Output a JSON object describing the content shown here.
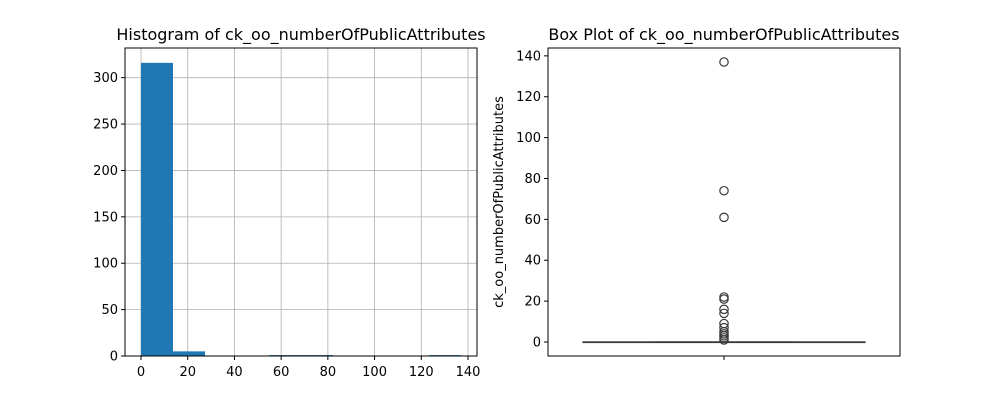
{
  "chart_data": [
    {
      "type": "bar",
      "subtype": "histogram",
      "title": "Histogram of ck_oo_numberOfPublicAttributes",
      "xlabel": "",
      "ylabel": "",
      "grid": true,
      "xlim": [
        -6.85,
        143.85
      ],
      "ylim": [
        0,
        332
      ],
      "xticks": [
        0,
        20,
        40,
        60,
        80,
        100,
        120,
        140
      ],
      "yticks": [
        0,
        50,
        100,
        150,
        200,
        250,
        300
      ],
      "bin_edges": [
        0,
        13.7,
        27.4,
        41.1,
        54.8,
        68.5,
        82.2,
        95.9,
        109.6,
        123.3,
        137
      ],
      "counts": [
        316,
        5,
        0,
        0,
        1,
        1,
        0,
        0,
        0,
        1
      ]
    },
    {
      "type": "box",
      "title": "Box Plot of ck_oo_numberOfPublicAttributes",
      "xlabel": "",
      "ylabel": "ck_oo_numberOfPublicAttributes",
      "ylim": [
        -6.85,
        143.85
      ],
      "yticks": [
        0,
        20,
        40,
        60,
        80,
        100,
        120,
        140
      ],
      "box": {
        "q1": 0,
        "median": 0,
        "q3": 0,
        "whisker_low": 0,
        "whisker_high": 0
      },
      "fliers": [
        137,
        74,
        61,
        22,
        21,
        16,
        14,
        9,
        7,
        5,
        4,
        3,
        2,
        1
      ]
    }
  ]
}
